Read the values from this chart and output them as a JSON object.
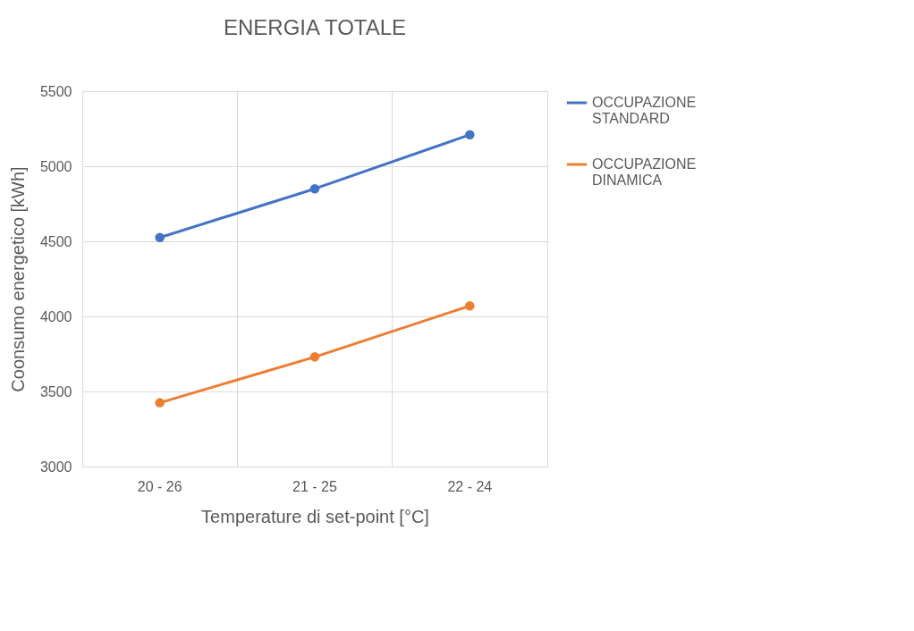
{
  "chart_data": {
    "type": "line",
    "title": "ENERGIA TOTALE",
    "xlabel": "Temperature di set-point [°C]",
    "ylabel": "Coonsumo energetico [kWh]",
    "categories": [
      "20 - 26",
      "21 - 25",
      "22 - 24"
    ],
    "series": [
      {
        "name": "OCCUPAZIONE STANDARD",
        "color": "#4472c4",
        "values": [
          4525,
          4850,
          5210
        ]
      },
      {
        "name": "OCCUPAZIONE DINAMICA",
        "color": "#ed7d31",
        "values": [
          3425,
          3730,
          4070
        ]
      }
    ],
    "ylim": [
      3000,
      5500
    ],
    "yticks": [
      3000,
      3500,
      4000,
      4500,
      5000,
      5500
    ],
    "grid": true,
    "legend": "right",
    "marker": "circle",
    "line_style": "solid"
  }
}
